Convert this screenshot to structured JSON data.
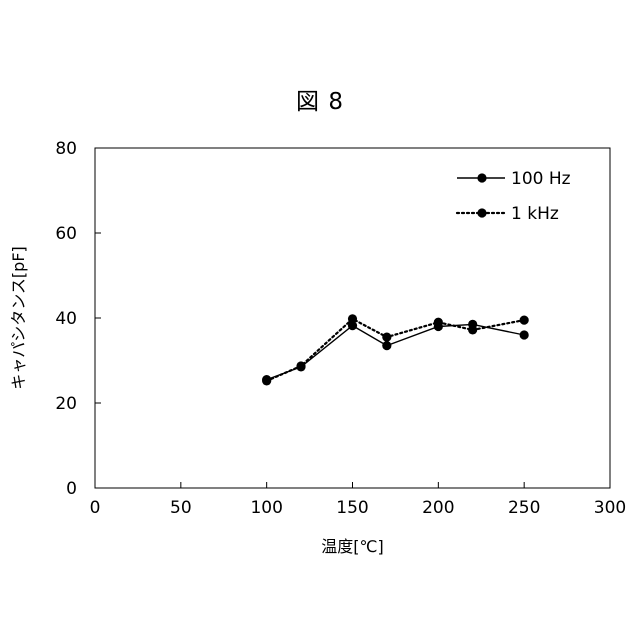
{
  "figure": {
    "title": "図 8"
  },
  "chart_data": {
    "type": "line",
    "xlabel": "温度[℃]",
    "ylabel": "キャパシタンス[pF]",
    "xlim": [
      0,
      300
    ],
    "ylim": [
      0,
      80
    ],
    "x_ticks": [
      0,
      50,
      100,
      150,
      200,
      250,
      300
    ],
    "y_ticks": [
      0,
      20,
      40,
      60,
      80
    ],
    "grid": false,
    "legend_position": "top-right",
    "series": [
      {
        "name": "100 Hz",
        "line_style": "solid",
        "color": "#000000",
        "x": [
          100,
          120,
          150,
          170,
          200,
          220,
          250
        ],
        "y": [
          25.5,
          28.5,
          38.2,
          33.5,
          38.0,
          38.5,
          36.0
        ]
      },
      {
        "name": "1 kHz",
        "line_style": "dotted",
        "color": "#000000",
        "x": [
          100,
          120,
          150,
          170,
          200,
          220,
          250
        ],
        "y": [
          25.2,
          28.7,
          39.8,
          35.5,
          39.0,
          37.2,
          39.5
        ]
      }
    ]
  }
}
